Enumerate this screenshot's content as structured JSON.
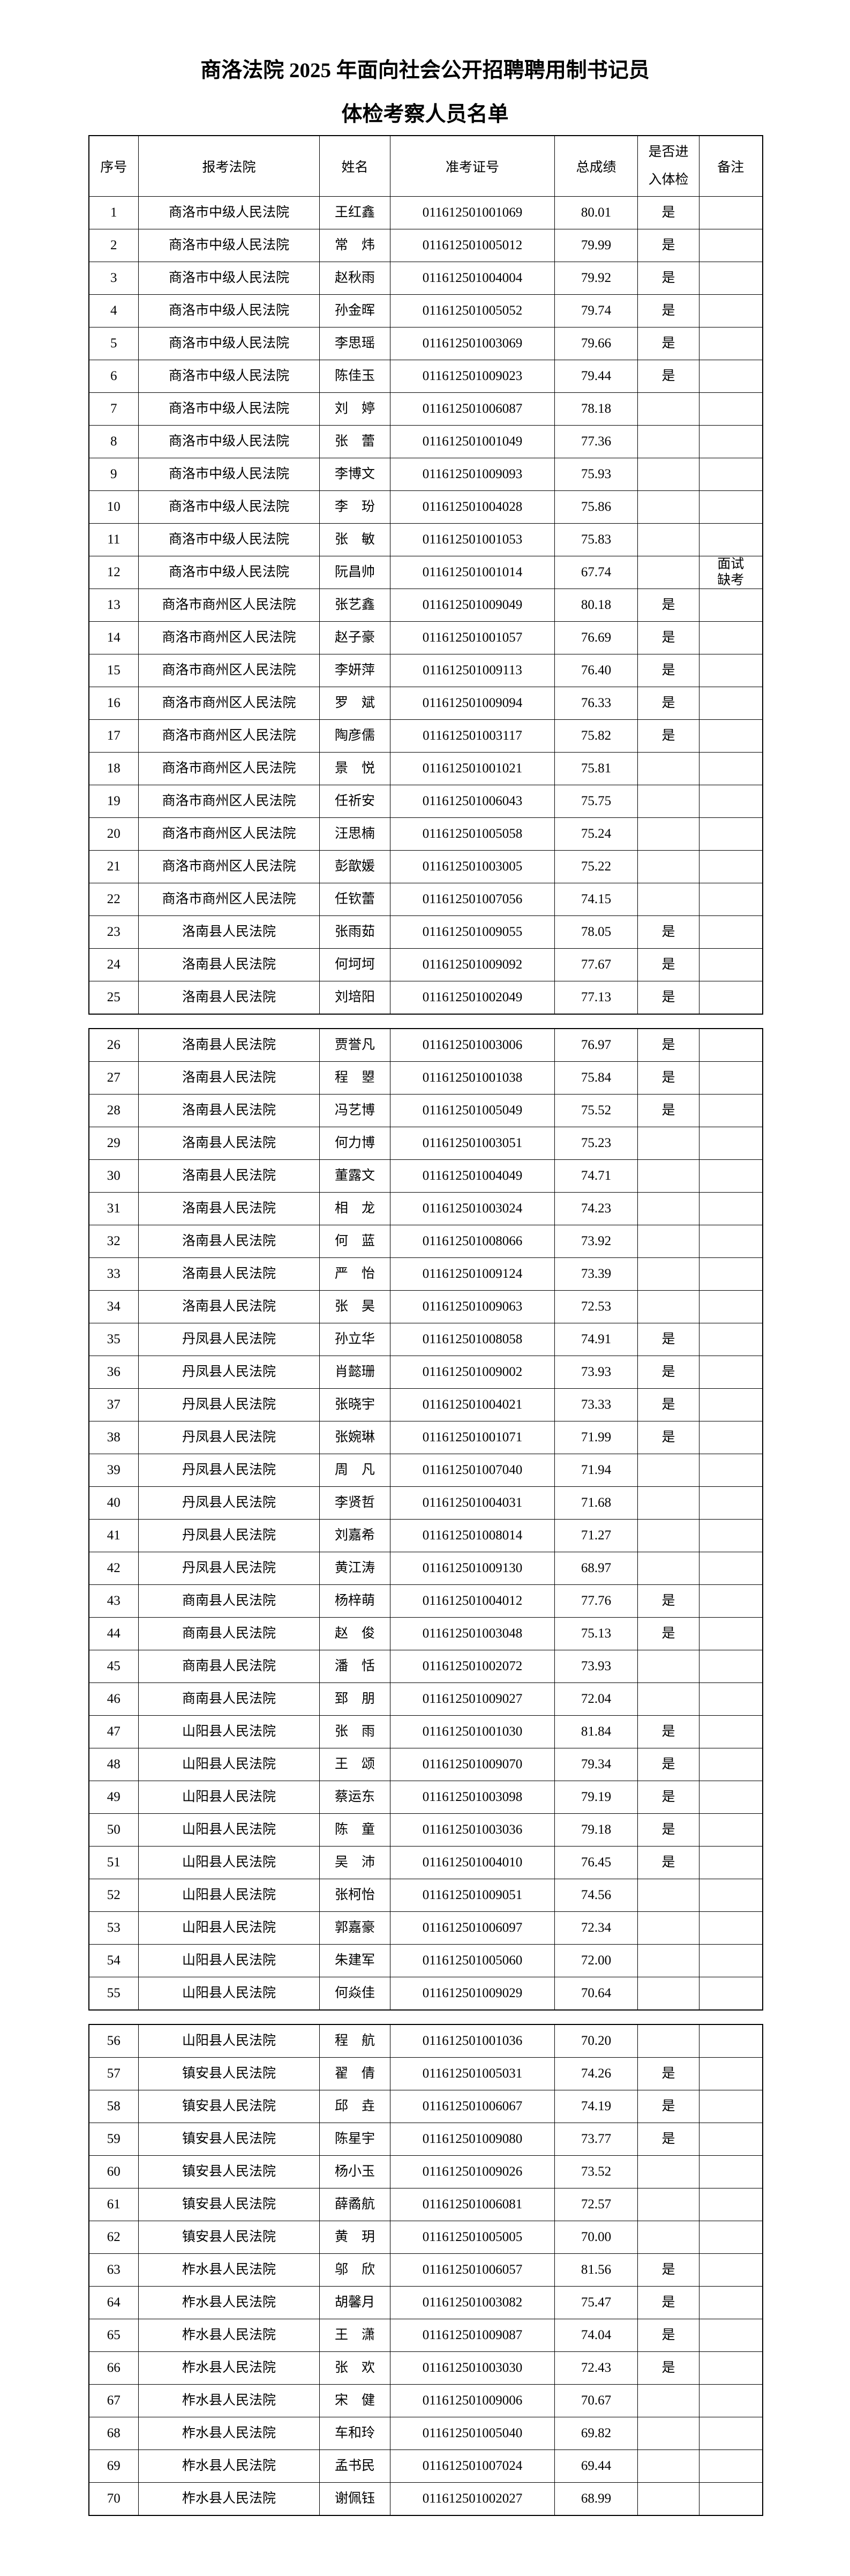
{
  "page": {
    "background": "#ffffff",
    "text_color": "#000000",
    "border_color": "#000000"
  },
  "title": {
    "line1": "商洛法院 2025 年面向社会公开招聘聘用制书记员",
    "line2": "体检考察人员名单"
  },
  "table": {
    "columns": [
      {
        "key": "no",
        "label": "序号"
      },
      {
        "key": "court",
        "label": "报考法院"
      },
      {
        "key": "name",
        "label": "姓名"
      },
      {
        "key": "ticket",
        "label": "准考证号"
      },
      {
        "key": "score",
        "label": "总成绩"
      },
      {
        "key": "medical",
        "label": "是否进\n入体检"
      },
      {
        "key": "remark",
        "label": "备注"
      }
    ]
  },
  "sections": [
    {
      "rows": [
        {
          "no": "1",
          "court": "商洛市中级人民法院",
          "name": "王红鑫",
          "ticket": "011612501001069",
          "score": "80.01",
          "medical": "是",
          "remark": ""
        },
        {
          "no": "2",
          "court": "商洛市中级人民法院",
          "name": "常　炜",
          "ticket": "011612501005012",
          "score": "79.99",
          "medical": "是",
          "remark": ""
        },
        {
          "no": "3",
          "court": "商洛市中级人民法院",
          "name": "赵秋雨",
          "ticket": "011612501004004",
          "score": "79.92",
          "medical": "是",
          "remark": ""
        },
        {
          "no": "4",
          "court": "商洛市中级人民法院",
          "name": "孙金晖",
          "ticket": "011612501005052",
          "score": "79.74",
          "medical": "是",
          "remark": ""
        },
        {
          "no": "5",
          "court": "商洛市中级人民法院",
          "name": "李思瑶",
          "ticket": "011612501003069",
          "score": "79.66",
          "medical": "是",
          "remark": ""
        },
        {
          "no": "6",
          "court": "商洛市中级人民法院",
          "name": "陈佳玉",
          "ticket": "011612501009023",
          "score": "79.44",
          "medical": "是",
          "remark": ""
        },
        {
          "no": "7",
          "court": "商洛市中级人民法院",
          "name": "刘　婷",
          "ticket": "011612501006087",
          "score": "78.18",
          "medical": "",
          "remark": ""
        },
        {
          "no": "8",
          "court": "商洛市中级人民法院",
          "name": "张　蕾",
          "ticket": "011612501001049",
          "score": "77.36",
          "medical": "",
          "remark": ""
        },
        {
          "no": "9",
          "court": "商洛市中级人民法院",
          "name": "李博文",
          "ticket": "011612501009093",
          "score": "75.93",
          "medical": "",
          "remark": ""
        },
        {
          "no": "10",
          "court": "商洛市中级人民法院",
          "name": "李　玢",
          "ticket": "011612501004028",
          "score": "75.86",
          "medical": "",
          "remark": ""
        },
        {
          "no": "11",
          "court": "商洛市中级人民法院",
          "name": "张　敏",
          "ticket": "011612501001053",
          "score": "75.83",
          "medical": "",
          "remark": ""
        },
        {
          "no": "12",
          "court": "商洛市中级人民法院",
          "name": "阮昌帅",
          "ticket": "011612501001014",
          "score": "67.74",
          "medical": "",
          "remark": "面试\n缺考"
        },
        {
          "no": "13",
          "court": "商洛市商州区人民法院",
          "name": "张艺鑫",
          "ticket": "011612501009049",
          "score": "80.18",
          "medical": "是",
          "remark": ""
        },
        {
          "no": "14",
          "court": "商洛市商州区人民法院",
          "name": "赵子豪",
          "ticket": "011612501001057",
          "score": "76.69",
          "medical": "是",
          "remark": ""
        },
        {
          "no": "15",
          "court": "商洛市商州区人民法院",
          "name": "李妍萍",
          "ticket": "011612501009113",
          "score": "76.40",
          "medical": "是",
          "remark": ""
        },
        {
          "no": "16",
          "court": "商洛市商州区人民法院",
          "name": "罗　斌",
          "ticket": "011612501009094",
          "score": "76.33",
          "medical": "是",
          "remark": ""
        },
        {
          "no": "17",
          "court": "商洛市商州区人民法院",
          "name": "陶彦儒",
          "ticket": "011612501003117",
          "score": "75.82",
          "medical": "是",
          "remark": ""
        },
        {
          "no": "18",
          "court": "商洛市商州区人民法院",
          "name": "景　悦",
          "ticket": "011612501001021",
          "score": "75.81",
          "medical": "",
          "remark": ""
        },
        {
          "no": "19",
          "court": "商洛市商州区人民法院",
          "name": "任祈安",
          "ticket": "011612501006043",
          "score": "75.75",
          "medical": "",
          "remark": ""
        },
        {
          "no": "20",
          "court": "商洛市商州区人民法院",
          "name": "汪思楠",
          "ticket": "011612501005058",
          "score": "75.24",
          "medical": "",
          "remark": ""
        },
        {
          "no": "21",
          "court": "商洛市商州区人民法院",
          "name": "彭歆媛",
          "ticket": "011612501003005",
          "score": "75.22",
          "medical": "",
          "remark": ""
        },
        {
          "no": "22",
          "court": "商洛市商州区人民法院",
          "name": "任钦蕾",
          "ticket": "011612501007056",
          "score": "74.15",
          "medical": "",
          "remark": ""
        },
        {
          "no": "23",
          "court": "洛南县人民法院",
          "name": "张雨茹",
          "ticket": "011612501009055",
          "score": "78.05",
          "medical": "是",
          "remark": ""
        },
        {
          "no": "24",
          "court": "洛南县人民法院",
          "name": "何坷坷",
          "ticket": "011612501009092",
          "score": "77.67",
          "medical": "是",
          "remark": ""
        },
        {
          "no": "25",
          "court": "洛南县人民法院",
          "name": "刘培阳",
          "ticket": "011612501002049",
          "score": "77.13",
          "medical": "是",
          "remark": ""
        }
      ]
    },
    {
      "rows": [
        {
          "no": "26",
          "court": "洛南县人民法院",
          "name": "贾誉凡",
          "ticket": "011612501003006",
          "score": "76.97",
          "medical": "是",
          "remark": ""
        },
        {
          "no": "27",
          "court": "洛南县人民法院",
          "name": "程　曌",
          "ticket": "011612501001038",
          "score": "75.84",
          "medical": "是",
          "remark": ""
        },
        {
          "no": "28",
          "court": "洛南县人民法院",
          "name": "冯艺博",
          "ticket": "011612501005049",
          "score": "75.52",
          "medical": "是",
          "remark": ""
        },
        {
          "no": "29",
          "court": "洛南县人民法院",
          "name": "何力博",
          "ticket": "011612501003051",
          "score": "75.23",
          "medical": "",
          "remark": ""
        },
        {
          "no": "30",
          "court": "洛南县人民法院",
          "name": "董露文",
          "ticket": "011612501004049",
          "score": "74.71",
          "medical": "",
          "remark": ""
        },
        {
          "no": "31",
          "court": "洛南县人民法院",
          "name": "相　龙",
          "ticket": "011612501003024",
          "score": "74.23",
          "medical": "",
          "remark": ""
        },
        {
          "no": "32",
          "court": "洛南县人民法院",
          "name": "何　蓝",
          "ticket": "011612501008066",
          "score": "73.92",
          "medical": "",
          "remark": ""
        },
        {
          "no": "33",
          "court": "洛南县人民法院",
          "name": "严　怡",
          "ticket": "011612501009124",
          "score": "73.39",
          "medical": "",
          "remark": ""
        },
        {
          "no": "34",
          "court": "洛南县人民法院",
          "name": "张　昊",
          "ticket": "011612501009063",
          "score": "72.53",
          "medical": "",
          "remark": ""
        },
        {
          "no": "35",
          "court": "丹凤县人民法院",
          "name": "孙立华",
          "ticket": "011612501008058",
          "score": "74.91",
          "medical": "是",
          "remark": ""
        },
        {
          "no": "36",
          "court": "丹凤县人民法院",
          "name": "肖懿珊",
          "ticket": "011612501009002",
          "score": "73.93",
          "medical": "是",
          "remark": ""
        },
        {
          "no": "37",
          "court": "丹凤县人民法院",
          "name": "张晓宇",
          "ticket": "011612501004021",
          "score": "73.33",
          "medical": "是",
          "remark": ""
        },
        {
          "no": "38",
          "court": "丹凤县人民法院",
          "name": "张婉琳",
          "ticket": "011612501001071",
          "score": "71.99",
          "medical": "是",
          "remark": ""
        },
        {
          "no": "39",
          "court": "丹凤县人民法院",
          "name": "周　凡",
          "ticket": "011612501007040",
          "score": "71.94",
          "medical": "",
          "remark": ""
        },
        {
          "no": "40",
          "court": "丹凤县人民法院",
          "name": "李贤哲",
          "ticket": "011612501004031",
          "score": "71.68",
          "medical": "",
          "remark": ""
        },
        {
          "no": "41",
          "court": "丹凤县人民法院",
          "name": "刘嘉希",
          "ticket": "011612501008014",
          "score": "71.27",
          "medical": "",
          "remark": ""
        },
        {
          "no": "42",
          "court": "丹凤县人民法院",
          "name": "黄江涛",
          "ticket": "011612501009130",
          "score": "68.97",
          "medical": "",
          "remark": ""
        },
        {
          "no": "43",
          "court": "商南县人民法院",
          "name": "杨梓萌",
          "ticket": "011612501004012",
          "score": "77.76",
          "medical": "是",
          "remark": ""
        },
        {
          "no": "44",
          "court": "商南县人民法院",
          "name": "赵　俊",
          "ticket": "011612501003048",
          "score": "75.13",
          "medical": "是",
          "remark": ""
        },
        {
          "no": "45",
          "court": "商南县人民法院",
          "name": "潘　恬",
          "ticket": "011612501002072",
          "score": "73.93",
          "medical": "",
          "remark": ""
        },
        {
          "no": "46",
          "court": "商南县人民法院",
          "name": "郅　朋",
          "ticket": "011612501009027",
          "score": "72.04",
          "medical": "",
          "remark": ""
        },
        {
          "no": "47",
          "court": "山阳县人民法院",
          "name": "张　雨",
          "ticket": "011612501001030",
          "score": "81.84",
          "medical": "是",
          "remark": ""
        },
        {
          "no": "48",
          "court": "山阳县人民法院",
          "name": "王　颂",
          "ticket": "011612501009070",
          "score": "79.34",
          "medical": "是",
          "remark": ""
        },
        {
          "no": "49",
          "court": "山阳县人民法院",
          "name": "蔡运东",
          "ticket": "011612501003098",
          "score": "79.19",
          "medical": "是",
          "remark": ""
        },
        {
          "no": "50",
          "court": "山阳县人民法院",
          "name": "陈　童",
          "ticket": "011612501003036",
          "score": "79.18",
          "medical": "是",
          "remark": ""
        },
        {
          "no": "51",
          "court": "山阳县人民法院",
          "name": "吴　沛",
          "ticket": "011612501004010",
          "score": "76.45",
          "medical": "是",
          "remark": ""
        },
        {
          "no": "52",
          "court": "山阳县人民法院",
          "name": "张柯怡",
          "ticket": "011612501009051",
          "score": "74.56",
          "medical": "",
          "remark": ""
        },
        {
          "no": "53",
          "court": "山阳县人民法院",
          "name": "郭嘉豪",
          "ticket": "011612501006097",
          "score": "72.34",
          "medical": "",
          "remark": ""
        },
        {
          "no": "54",
          "court": "山阳县人民法院",
          "name": "朱建军",
          "ticket": "011612501005060",
          "score": "72.00",
          "medical": "",
          "remark": ""
        },
        {
          "no": "55",
          "court": "山阳县人民法院",
          "name": "何焱佳",
          "ticket": "011612501009029",
          "score": "70.64",
          "medical": "",
          "remark": ""
        }
      ]
    },
    {
      "rows": [
        {
          "no": "56",
          "court": "山阳县人民法院",
          "name": "程　航",
          "ticket": "011612501001036",
          "score": "70.20",
          "medical": "",
          "remark": ""
        },
        {
          "no": "57",
          "court": "镇安县人民法院",
          "name": "翟　倩",
          "ticket": "011612501005031",
          "score": "74.26",
          "medical": "是",
          "remark": ""
        },
        {
          "no": "58",
          "court": "镇安县人民法院",
          "name": "邱　垚",
          "ticket": "011612501006067",
          "score": "74.19",
          "medical": "是",
          "remark": ""
        },
        {
          "no": "59",
          "court": "镇安县人民法院",
          "name": "陈星宇",
          "ticket": "011612501009080",
          "score": "73.77",
          "medical": "是",
          "remark": ""
        },
        {
          "no": "60",
          "court": "镇安县人民法院",
          "name": "杨小玉",
          "ticket": "011612501009026",
          "score": "73.52",
          "medical": "",
          "remark": ""
        },
        {
          "no": "61",
          "court": "镇安县人民法院",
          "name": "薛矞航",
          "ticket": "011612501006081",
          "score": "72.57",
          "medical": "",
          "remark": ""
        },
        {
          "no": "62",
          "court": "镇安县人民法院",
          "name": "黄　玥",
          "ticket": "011612501005005",
          "score": "70.00",
          "medical": "",
          "remark": ""
        },
        {
          "no": "63",
          "court": "柞水县人民法院",
          "name": "邬　欣",
          "ticket": "011612501006057",
          "score": "81.56",
          "medical": "是",
          "remark": ""
        },
        {
          "no": "64",
          "court": "柞水县人民法院",
          "name": "胡馨月",
          "ticket": "011612501003082",
          "score": "75.47",
          "medical": "是",
          "remark": ""
        },
        {
          "no": "65",
          "court": "柞水县人民法院",
          "name": "王　潇",
          "ticket": "011612501009087",
          "score": "74.04",
          "medical": "是",
          "remark": ""
        },
        {
          "no": "66",
          "court": "柞水县人民法院",
          "name": "张　欢",
          "ticket": "011612501003030",
          "score": "72.43",
          "medical": "是",
          "remark": ""
        },
        {
          "no": "67",
          "court": "柞水县人民法院",
          "name": "宋　健",
          "ticket": "011612501009006",
          "score": "70.67",
          "medical": "",
          "remark": ""
        },
        {
          "no": "68",
          "court": "柞水县人民法院",
          "name": "车和玲",
          "ticket": "011612501005040",
          "score": "69.82",
          "medical": "",
          "remark": ""
        },
        {
          "no": "69",
          "court": "柞水县人民法院",
          "name": "孟书民",
          "ticket": "011612501007024",
          "score": "69.44",
          "medical": "",
          "remark": ""
        },
        {
          "no": "70",
          "court": "柞水县人民法院",
          "name": "谢佩钰",
          "ticket": "011612501002027",
          "score": "68.99",
          "medical": "",
          "remark": ""
        }
      ]
    }
  ]
}
